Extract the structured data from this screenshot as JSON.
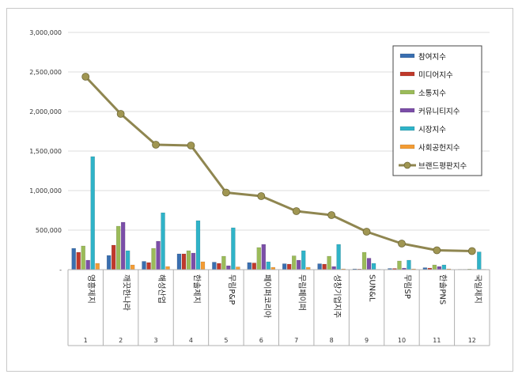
{
  "chart_data": {
    "type": "bar",
    "categories": [
      "영흥제지",
      "깨끗한나라",
      "해성산업",
      "한솔제지",
      "무림P&P",
      "페이퍼코리아",
      "무림페이퍼",
      "성창기업지주",
      "SUN&L",
      "무림SP",
      "한솔PNS",
      "국일제지"
    ],
    "ranks": [
      "1",
      "2",
      "3",
      "4",
      "5",
      "6",
      "7",
      "8",
      "9",
      "10",
      "11",
      "12"
    ],
    "ylim": [
      0,
      3000000
    ],
    "yticks": [
      0,
      500000,
      1000000,
      1500000,
      2000000,
      2500000,
      3000000
    ],
    "ytick_labels": [
      "-",
      "500,000",
      "1,000,000",
      "1,500,000",
      "2,000,000",
      "2,500,000",
      "3,000,000"
    ],
    "grid": true,
    "legend_position": "top-right",
    "series": [
      {
        "name": "참여지수",
        "color": "#3a6fb0",
        "values": [
          270000,
          180000,
          105000,
          200000,
          95000,
          90000,
          75000,
          75000,
          10000,
          15000,
          25000,
          5000
        ]
      },
      {
        "name": "미디어지수",
        "color": "#c0392b",
        "values": [
          220000,
          310000,
          90000,
          200000,
          80000,
          85000,
          70000,
          70000,
          8000,
          15000,
          20000,
          5000
        ]
      },
      {
        "name": "소통지수",
        "color": "#9bbb59",
        "values": [
          300000,
          550000,
          270000,
          240000,
          170000,
          280000,
          175000,
          170000,
          220000,
          110000,
          60000,
          8000
        ]
      },
      {
        "name": "커뮤니티지수",
        "color": "#7b4ea8",
        "values": [
          120000,
          600000,
          360000,
          210000,
          50000,
          320000,
          120000,
          40000,
          145000,
          20000,
          40000,
          5000
        ]
      },
      {
        "name": "시장지수",
        "color": "#2fb3c8",
        "values": [
          1430000,
          240000,
          720000,
          620000,
          530000,
          100000,
          240000,
          320000,
          80000,
          120000,
          60000,
          225000
        ]
      },
      {
        "name": "사회공헌지수",
        "color": "#f39c34",
        "values": [
          80000,
          60000,
          40000,
          100000,
          35000,
          30000,
          30000,
          10000,
          5000,
          10000,
          10000,
          5000
        ]
      }
    ],
    "line": {
      "name": "브랜드평판지수",
      "color": "#8f8650",
      "marker_color": "#a09652",
      "values": [
        2440000,
        1970000,
        1580000,
        1570000,
        975000,
        930000,
        740000,
        690000,
        480000,
        330000,
        245000,
        235000
      ]
    }
  }
}
